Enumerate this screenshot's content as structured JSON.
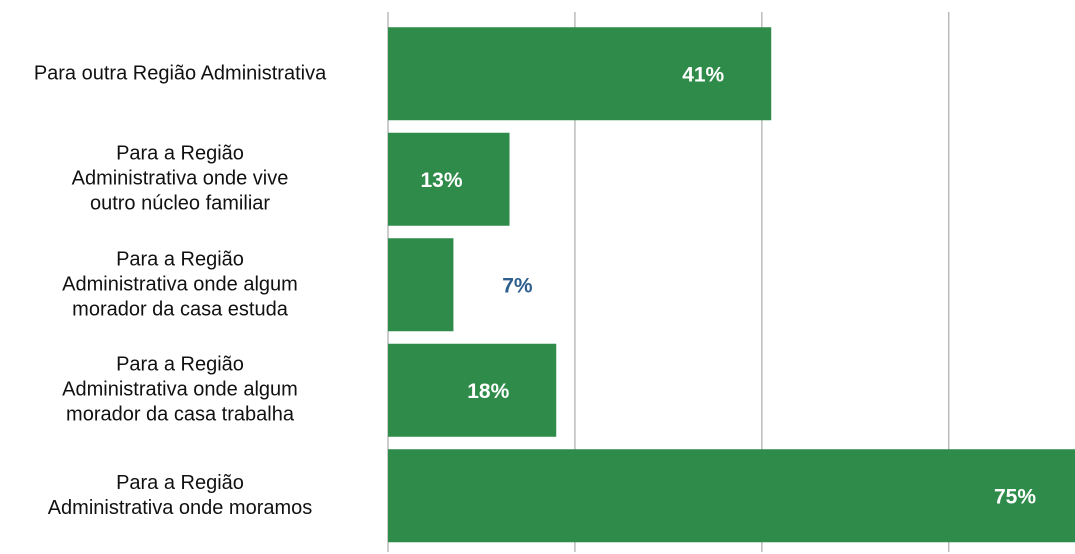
{
  "chart_data": {
    "type": "bar",
    "orientation": "horizontal",
    "categories": [
      "Para outra Região Administrativa",
      "Para a Região\nAdministrativa onde vive\noutro núcleo familiar",
      "Para a Região\nAdministrativa onde algum\nmorador da casa estuda",
      "Para a Região\nAdministrativa onde algum\nmorador da casa trabalha",
      "Para a Região\nAdministrativa onde moramos"
    ],
    "values": [
      41,
      13,
      7,
      18,
      75
    ],
    "value_labels": [
      "41%",
      "13%",
      "7%",
      "18%",
      "75%"
    ],
    "color": "#2e8b4a",
    "label_color_inside": "#ffffff",
    "label_color_outside": "#2e5e8e",
    "xlim": [
      0,
      73.5
    ],
    "xticks": [
      0,
      20,
      40,
      60
    ],
    "grid": true
  }
}
